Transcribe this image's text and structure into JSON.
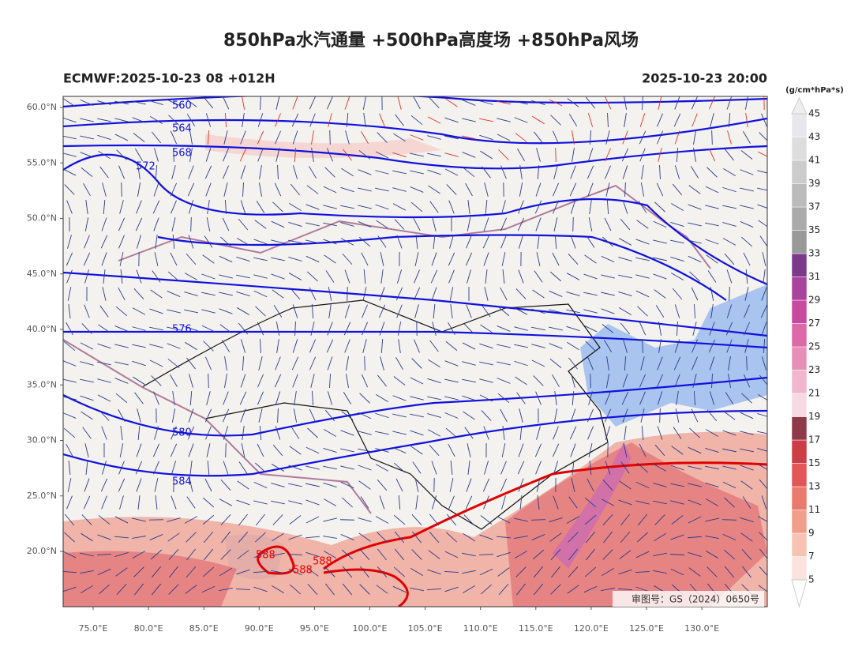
{
  "header": {
    "title": "850hPa水汽通量 +500hPa高度场 +850hPa风场",
    "left": "ECMWF:2025-10-23 08 +012H",
    "right": "2025-10-23 20:00"
  },
  "map": {
    "lat_labels": [
      "60.0°N",
      "55.0°N",
      "50.0°N",
      "45.0°N",
      "40.0°N",
      "35.0°N",
      "30.0°N",
      "25.0°N",
      "20.0°N"
    ],
    "lon_labels": [
      "75.0°E",
      "80.0°E",
      "85.0°E",
      "90.0°E",
      "95.0°E",
      "100.0°E",
      "105.0°E",
      "110.0°E",
      "115.0°E",
      "120.0°E",
      "125.0°E",
      "130.0°E"
    ],
    "contour_labels": [
      "560",
      "564",
      "568",
      "572",
      "576",
      "580",
      "584",
      "588",
      "588",
      "588"
    ],
    "credit": "审图号：GS（2024）0650号"
  },
  "colorbar": {
    "unit": "(g/cm*hPa*s)",
    "labels": [
      5,
      7,
      9,
      11,
      13,
      15,
      17,
      19,
      21,
      23,
      25,
      27,
      29,
      31,
      33,
      35,
      37,
      39,
      41,
      43,
      45
    ],
    "colors": [
      "#f9e3dc",
      "#f6c3b2",
      "#f19e8a",
      "#ea7a6d",
      "#e25658",
      "#cc3d46",
      "#8f3a48",
      "#f7d9e3",
      "#f0b6cc",
      "#e690b8",
      "#dc6aa8",
      "#c84aa0",
      "#a8449b",
      "#7e3a8a",
      "#999999",
      "#aaaaaa",
      "#bbbbbb",
      "#cccccc",
      "#dddddd",
      "#e8e8ea"
    ]
  }
}
